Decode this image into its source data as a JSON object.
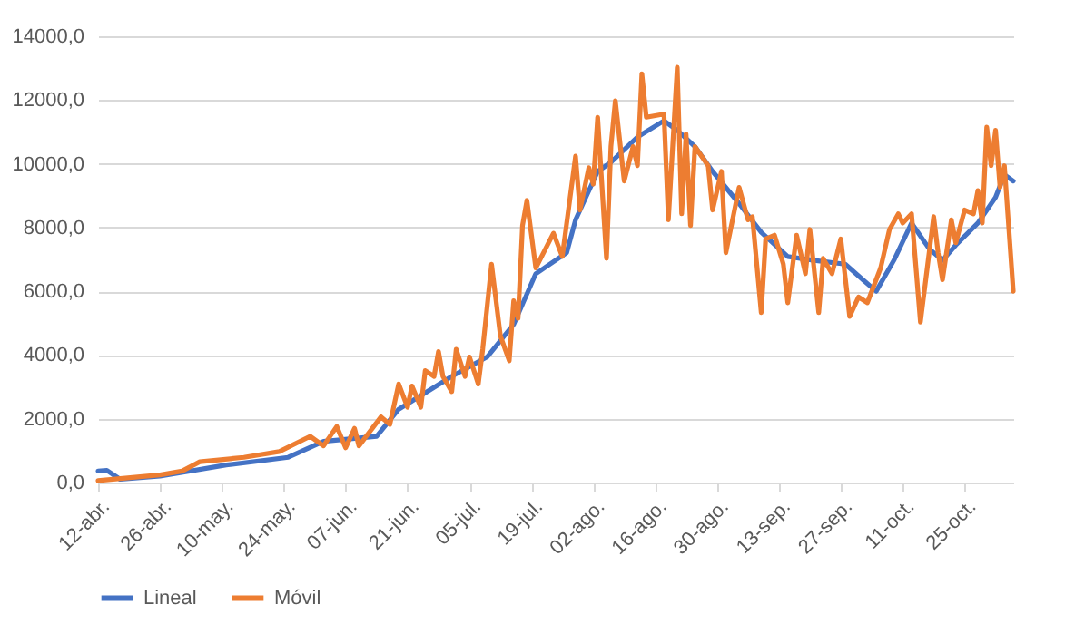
{
  "chart_data": {
    "type": "line",
    "legend": "bottom",
    "grid": "y",
    "marker": "none",
    "line_style": "solid",
    "xlim": [
      "--04-12",
      "--11-05"
    ],
    "xticks": [
      {
        "value": "--04-12",
        "label": "12-abr."
      },
      {
        "value": "--04-26",
        "label": "26-abr."
      },
      {
        "value": "--05-10",
        "label": "10-may."
      },
      {
        "value": "--05-24",
        "label": "24-may."
      },
      {
        "value": "--06-07",
        "label": "07-jun."
      },
      {
        "value": "--06-21",
        "label": "21-jun."
      },
      {
        "value": "--07-05",
        "label": "05-jul."
      },
      {
        "value": "--07-19",
        "label": "19-jul."
      },
      {
        "value": "--08-02",
        "label": "02-ago."
      },
      {
        "value": "--08-16",
        "label": "16-ago."
      },
      {
        "value": "--08-30",
        "label": "30-ago."
      },
      {
        "value": "--09-13",
        "label": "13-sep."
      },
      {
        "value": "--09-27",
        "label": "27-sep."
      },
      {
        "value": "--10-11",
        "label": "11-oct."
      },
      {
        "value": "--10-25",
        "label": "25-oct."
      }
    ],
    "ylim": [
      0,
      14000
    ],
    "yticks": [
      {
        "value": 0,
        "label": "0,0"
      },
      {
        "value": 2000,
        "label": "2000,0"
      },
      {
        "value": 4000,
        "label": "4000,0"
      },
      {
        "value": 6000,
        "label": "6000,0"
      },
      {
        "value": 8000,
        "label": "8000,0"
      },
      {
        "value": 10000,
        "label": "10000,0"
      },
      {
        "value": 12000,
        "label": "12000,0"
      },
      {
        "value": 14000,
        "label": "14000,0"
      }
    ],
    "series": [
      {
        "name": "Lineal",
        "color": "#4472c4",
        "x": [
          "--04-12",
          "--04-14",
          "--04-17",
          "--04-26",
          "--05-11",
          "--05-25",
          "--06-02",
          "--06-14",
          "--06-19",
          "--07-01",
          "--07-09",
          "--07-15",
          "--07-20",
          "--07-27",
          "--07-29",
          "--08-03",
          "--08-06",
          "--08-12",
          "--08-18",
          "--08-21",
          "--08-25",
          "--08-29",
          "--09-04",
          "--09-09",
          "--09-15",
          "--09-21",
          "--09-28",
          "--10-02",
          "--10-05",
          "--10-09",
          "--10-13",
          "--10-17",
          "--10-20",
          "--10-23",
          "--10-28",
          "--11-01",
          "--11-03",
          "--11-05"
        ],
        "values": [
          360,
          380,
          100,
          200,
          550,
          790,
          1290,
          1450,
          2300,
          3330,
          3940,
          4960,
          6550,
          7210,
          8240,
          9760,
          10050,
          10840,
          11350,
          11050,
          10540,
          9760,
          8750,
          7850,
          7090,
          6970,
          6850,
          6360,
          6000,
          6970,
          8140,
          7330,
          6970,
          7450,
          8140,
          8950,
          9660,
          9460
        ]
      },
      {
        "name": "Móvil",
        "color": "#ed7d31",
        "x": [
          "--04-12",
          "--04-26",
          "--05-01",
          "--05-05",
          "--05-15",
          "--05-23",
          "--05-30",
          "--06-02",
          "--06-05",
          "--06-07",
          "--06-09",
          "--06-10",
          "--06-15",
          "--06-17",
          "--06-19",
          "--06-21",
          "--06-22",
          "--06-24",
          "--06-25",
          "--06-27",
          "--06-28",
          "--06-29",
          "--07-01",
          "--07-02",
          "--07-04",
          "--07-05",
          "--07-07",
          "--07-08",
          "--07-10",
          "--07-12",
          "--07-14",
          "--07-15",
          "--07-16",
          "--07-17",
          "--07-18",
          "--07-20",
          "--07-24",
          "--07-26",
          "--07-29",
          "--07-30",
          "--08-01",
          "--08-02",
          "--08-03",
          "--08-05",
          "--08-06",
          "--08-07",
          "--08-09",
          "--08-11",
          "--08-12",
          "--08-13",
          "--08-14",
          "--08-18",
          "--08-19",
          "--08-21",
          "--08-22",
          "--08-23",
          "--08-24",
          "--08-25",
          "--08-28",
          "--08-29",
          "--08-31",
          "--09-01",
          "--09-04",
          "--09-06",
          "--09-07",
          "--09-09",
          "--09-10",
          "--09-12",
          "--09-14",
          "--09-15",
          "--09-17",
          "--09-19",
          "--09-20",
          "--09-22",
          "--09-23",
          "--09-25",
          "--09-27",
          "--09-29",
          "--10-01",
          "--10-03",
          "--10-06",
          "--10-08",
          "--10-10",
          "--10-11",
          "--10-13",
          "--10-15",
          "--10-18",
          "--10-19",
          "--10-20",
          "--10-22",
          "--10-23",
          "--10-25",
          "--10-27",
          "--10-28",
          "--10-29",
          "--10-30",
          "--10-31",
          "--11-01",
          "--11-02",
          "--11-03",
          "--11-05"
        ],
        "values": [
          60,
          240,
          360,
          650,
          790,
          970,
          1450,
          1150,
          1760,
          1090,
          1700,
          1150,
          2060,
          1820,
          3090,
          2360,
          3030,
          2360,
          3510,
          3330,
          4110,
          3330,
          2850,
          4180,
          3330,
          3940,
          3090,
          4180,
          6850,
          4600,
          3820,
          5700,
          5150,
          8060,
          8850,
          6730,
          7820,
          7090,
          10240,
          8550,
          9880,
          9360,
          11460,
          7030,
          10540,
          11980,
          9460,
          10540,
          9940,
          12820,
          11460,
          11560,
          8240,
          13030,
          8430,
          10940,
          8060,
          10540,
          9940,
          8550,
          9760,
          7210,
          9260,
          8240,
          8340,
          5330,
          7640,
          7760,
          6850,
          5640,
          7760,
          6550,
          7940,
          5330,
          7030,
          6550,
          7640,
          5210,
          5820,
          5640,
          6730,
          7940,
          8430,
          8140,
          8430,
          5030,
          8340,
          7210,
          6360,
          8240,
          7520,
          8550,
          8430,
          9160,
          8140,
          11150,
          9940,
          11050,
          9260,
          9940,
          6000
        ]
      }
    ]
  }
}
